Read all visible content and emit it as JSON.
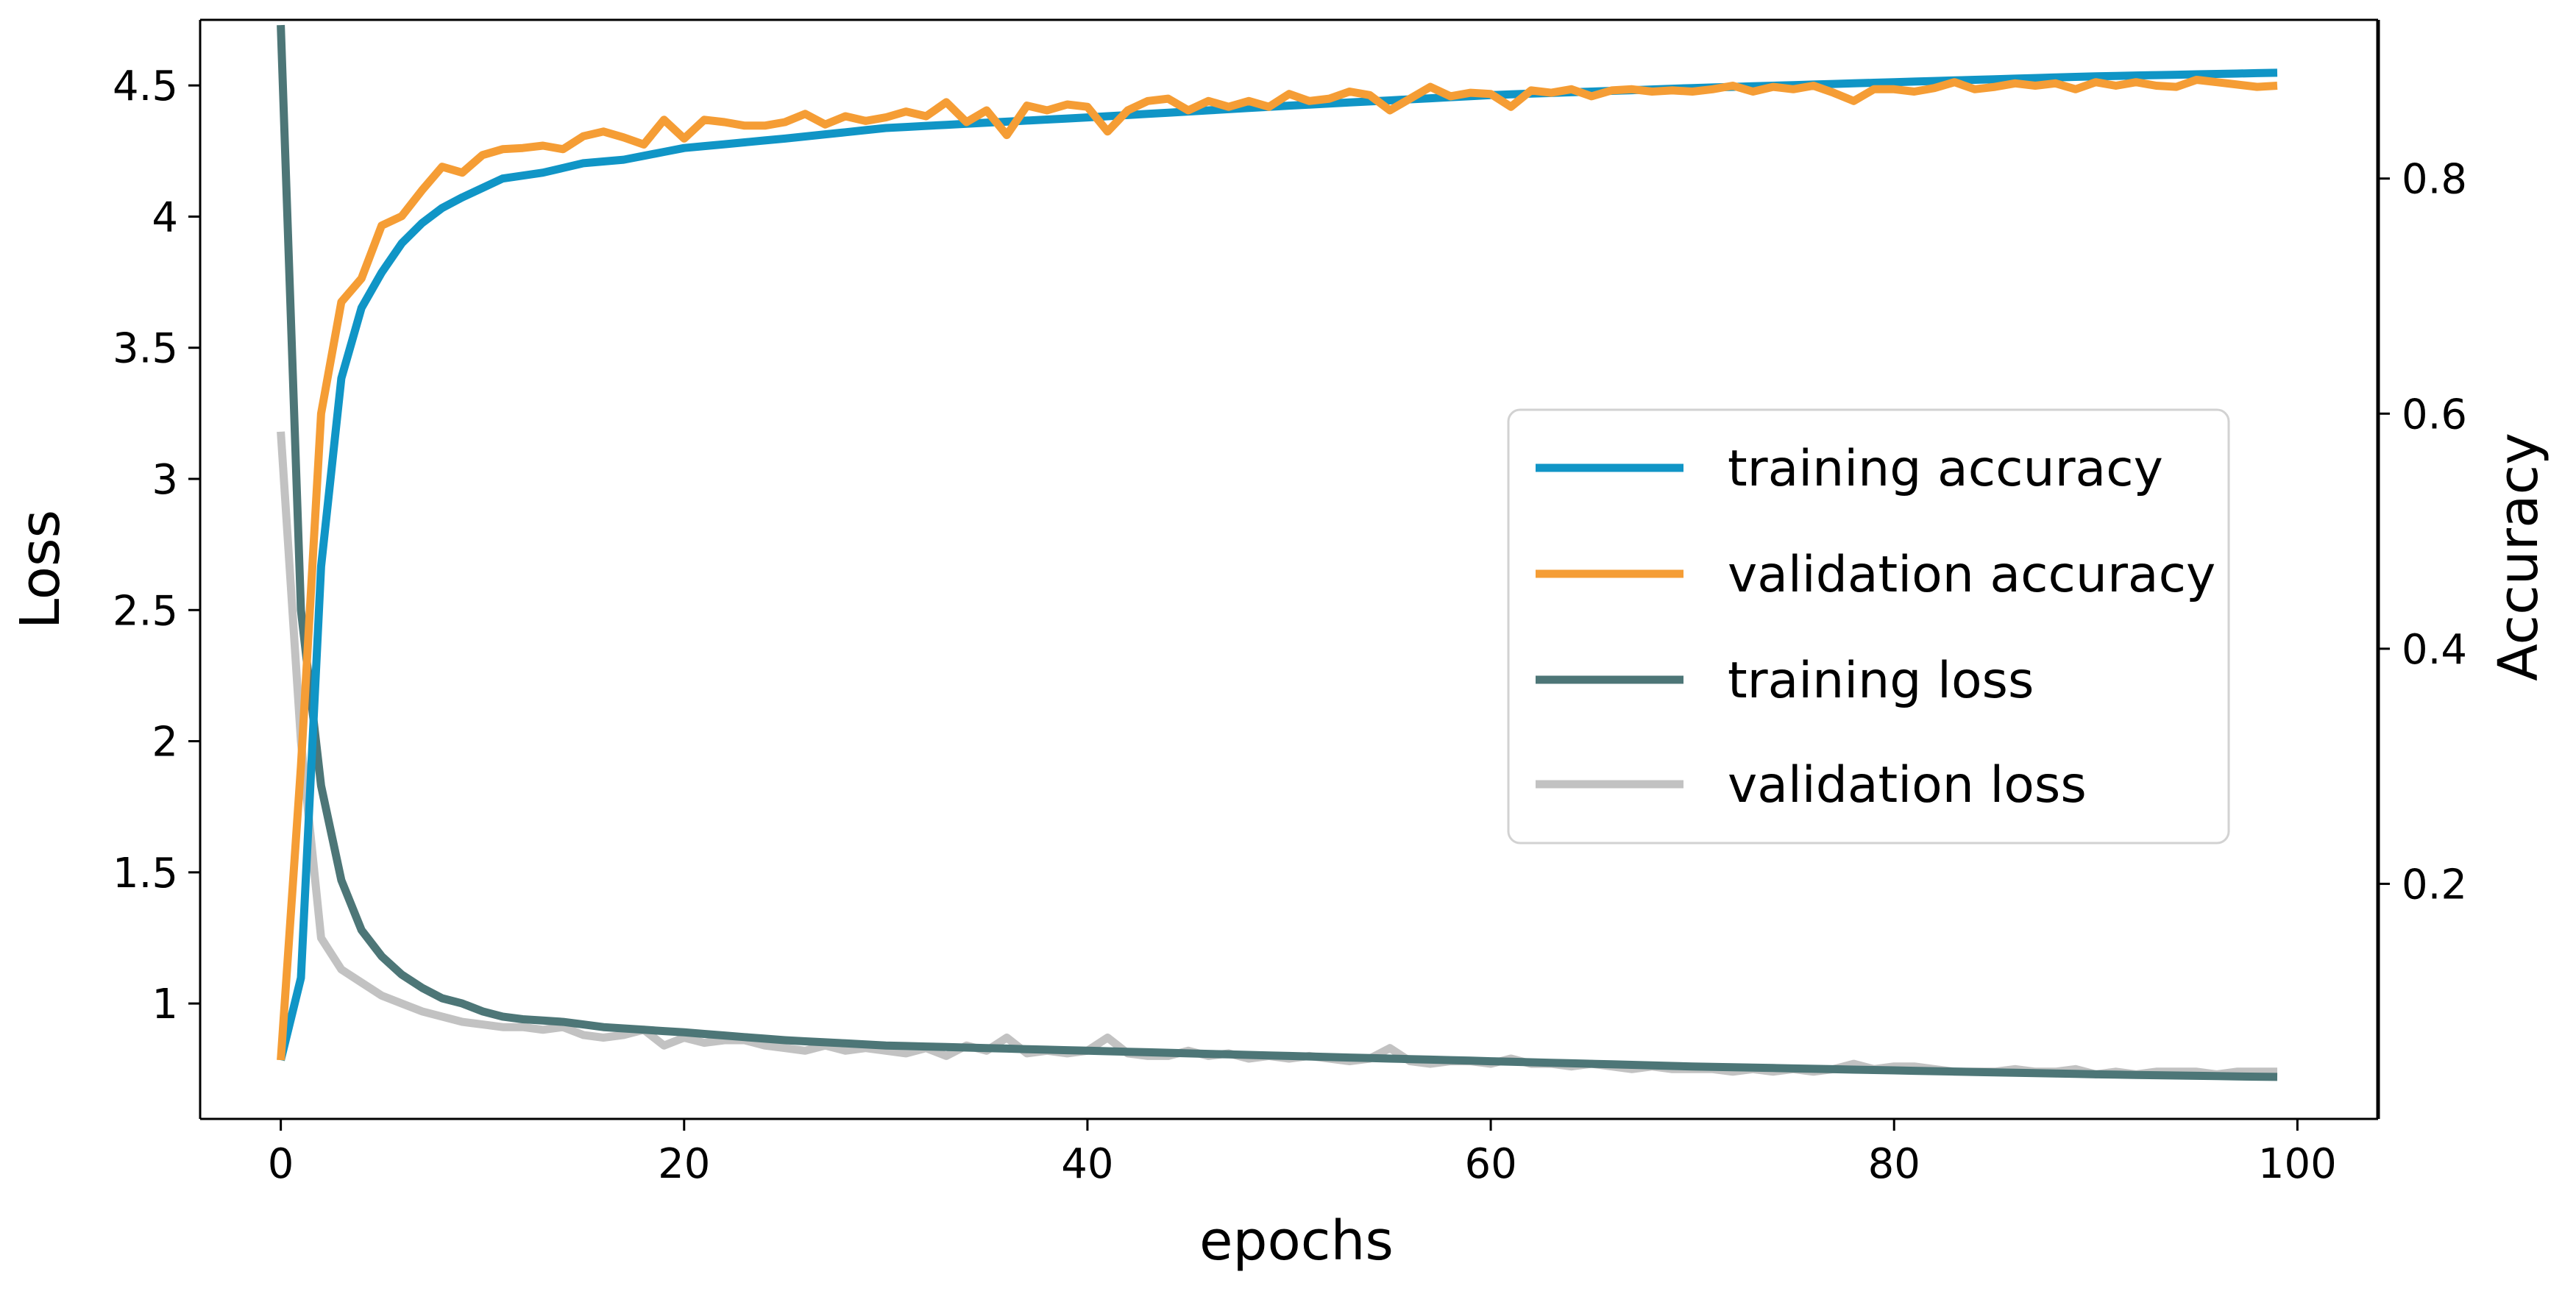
{
  "chart_data": {
    "type": "line",
    "title": "",
    "xlabel": "epochs",
    "ylabel_left": "Loss",
    "ylabel_right": "Accuracy",
    "xlim": [
      -4,
      104
    ],
    "ylim_left": [
      0.56,
      4.75
    ],
    "ylim_right": [
      0.0,
      0.935
    ],
    "xticks": [
      0,
      20,
      40,
      60,
      80,
      100
    ],
    "xtick_labels": [
      "0",
      "20",
      "40",
      "60",
      "80",
      "100"
    ],
    "yticks_left": [
      1,
      1.5,
      2,
      2.5,
      3,
      3.5,
      4,
      4.5
    ],
    "ytick_labels_left": [
      "1",
      "1.5",
      "2",
      "2.5",
      "3",
      "3.5",
      "4",
      "4.5"
    ],
    "yticks_right": [
      0.2,
      0.4,
      0.6,
      0.8
    ],
    "ytick_labels_right": [
      "0.2",
      "0.4",
      "0.6",
      "0.8"
    ],
    "grid": false,
    "legend_position": "center-right",
    "series": [
      {
        "name": "training accuracy",
        "axis": "right",
        "color": "#1095C6",
        "anchors": [
          [
            0,
            0.05
          ],
          [
            1,
            0.12
          ],
          [
            2,
            0.47
          ],
          [
            3,
            0.63
          ],
          [
            4,
            0.69
          ],
          [
            5,
            0.72
          ],
          [
            6,
            0.745
          ],
          [
            7,
            0.762
          ],
          [
            8,
            0.775
          ],
          [
            9,
            0.784
          ],
          [
            10,
            0.792
          ],
          [
            11,
            0.8
          ],
          [
            13,
            0.805
          ],
          [
            15,
            0.813
          ],
          [
            17,
            0.816
          ],
          [
            20,
            0.826
          ],
          [
            25,
            0.834
          ],
          [
            30,
            0.843
          ],
          [
            40,
            0.852
          ],
          [
            50,
            0.862
          ],
          [
            60,
            0.871
          ],
          [
            70,
            0.877
          ],
          [
            80,
            0.882
          ],
          [
            90,
            0.887
          ],
          [
            99,
            0.89
          ]
        ]
      },
      {
        "name": "validation accuracy",
        "axis": "right",
        "color": "#F59D35",
        "anchors": [
          [
            0,
            0.05
          ],
          [
            1,
            0.3
          ],
          [
            2,
            0.6
          ],
          [
            3,
            0.695
          ],
          [
            4,
            0.715
          ],
          [
            5,
            0.76
          ],
          [
            6,
            0.768
          ],
          [
            7,
            0.79
          ],
          [
            8,
            0.81
          ],
          [
            9,
            0.805
          ],
          [
            10,
            0.82
          ],
          [
            11,
            0.825
          ],
          [
            12,
            0.826
          ],
          [
            13,
            0.828
          ],
          [
            14,
            0.825
          ],
          [
            15,
            0.836
          ],
          [
            16,
            0.84
          ],
          [
            17,
            0.835
          ],
          [
            18,
            0.829
          ],
          [
            19,
            0.85
          ],
          [
            20,
            0.834
          ],
          [
            21,
            0.85
          ],
          [
            22,
            0.848
          ],
          [
            23,
            0.845
          ],
          [
            24,
            0.845
          ],
          [
            25,
            0.848
          ],
          [
            26,
            0.855
          ],
          [
            27,
            0.846
          ],
          [
            28,
            0.853
          ],
          [
            29,
            0.849
          ],
          [
            30,
            0.852
          ],
          [
            31,
            0.857
          ],
          [
            32,
            0.853
          ],
          [
            33,
            0.865
          ],
          [
            34,
            0.848
          ],
          [
            35,
            0.858
          ],
          [
            36,
            0.837
          ],
          [
            37,
            0.862
          ],
          [
            38,
            0.858
          ],
          [
            39,
            0.863
          ],
          [
            40,
            0.861
          ],
          [
            41,
            0.84
          ],
          [
            42,
            0.858
          ],
          [
            43,
            0.866
          ],
          [
            44,
            0.868
          ],
          [
            45,
            0.858
          ],
          [
            46,
            0.866
          ],
          [
            47,
            0.861
          ],
          [
            48,
            0.866
          ],
          [
            49,
            0.861
          ],
          [
            50,
            0.872
          ],
          [
            51,
            0.866
          ],
          [
            52,
            0.868
          ],
          [
            53,
            0.874
          ],
          [
            54,
            0.871
          ],
          [
            55,
            0.858
          ],
          [
            56,
            0.868
          ],
          [
            57,
            0.878
          ],
          [
            58,
            0.87
          ],
          [
            59,
            0.873
          ],
          [
            60,
            0.872
          ],
          [
            61,
            0.861
          ],
          [
            62,
            0.875
          ],
          [
            63,
            0.873
          ],
          [
            64,
            0.876
          ],
          [
            65,
            0.87
          ],
          [
            66,
            0.875
          ],
          [
            67,
            0.876
          ],
          [
            68,
            0.874
          ],
          [
            69,
            0.875
          ],
          [
            70,
            0.874
          ],
          [
            71,
            0.876
          ],
          [
            72,
            0.879
          ],
          [
            73,
            0.874
          ],
          [
            74,
            0.878
          ],
          [
            75,
            0.876
          ],
          [
            76,
            0.879
          ],
          [
            77,
            0.873
          ],
          [
            78,
            0.866
          ],
          [
            79,
            0.876
          ],
          [
            80,
            0.876
          ],
          [
            81,
            0.874
          ],
          [
            82,
            0.877
          ],
          [
            83,
            0.882
          ],
          [
            84,
            0.876
          ],
          [
            85,
            0.878
          ],
          [
            86,
            0.881
          ],
          [
            87,
            0.879
          ],
          [
            88,
            0.881
          ],
          [
            89,
            0.876
          ],
          [
            90,
            0.882
          ],
          [
            91,
            0.879
          ],
          [
            92,
            0.882
          ],
          [
            93,
            0.879
          ],
          [
            94,
            0.878
          ],
          [
            95,
            0.884
          ],
          [
            96,
            0.882
          ],
          [
            97,
            0.88
          ],
          [
            98,
            0.878
          ],
          [
            99,
            0.879
          ]
        ]
      },
      {
        "name": "training loss",
        "axis": "left",
        "color": "#4D7677",
        "anchors": [
          [
            0,
            4.73
          ],
          [
            1,
            2.5
          ],
          [
            2,
            1.83
          ],
          [
            3,
            1.47
          ],
          [
            4,
            1.28
          ],
          [
            5,
            1.18
          ],
          [
            6,
            1.11
          ],
          [
            7,
            1.06
          ],
          [
            8,
            1.02
          ],
          [
            9,
            1.0
          ],
          [
            10,
            0.97
          ],
          [
            11,
            0.95
          ],
          [
            12,
            0.94
          ],
          [
            14,
            0.93
          ],
          [
            16,
            0.91
          ],
          [
            20,
            0.89
          ],
          [
            25,
            0.86
          ],
          [
            30,
            0.84
          ],
          [
            40,
            0.82
          ],
          [
            50,
            0.8
          ],
          [
            60,
            0.78
          ],
          [
            70,
            0.76
          ],
          [
            80,
            0.745
          ],
          [
            90,
            0.73
          ],
          [
            99,
            0.72
          ]
        ]
      },
      {
        "name": "validation loss",
        "axis": "left",
        "color": "#C2C2C2",
        "anchors": [
          [
            0,
            3.18
          ],
          [
            1,
            2.0
          ],
          [
            2,
            1.25
          ],
          [
            3,
            1.13
          ],
          [
            4,
            1.08
          ],
          [
            5,
            1.03
          ],
          [
            6,
            1.0
          ],
          [
            7,
            0.97
          ],
          [
            8,
            0.95
          ],
          [
            9,
            0.93
          ],
          [
            10,
            0.92
          ],
          [
            11,
            0.91
          ],
          [
            12,
            0.91
          ],
          [
            13,
            0.9
          ],
          [
            14,
            0.91
          ],
          [
            15,
            0.88
          ],
          [
            16,
            0.87
          ],
          [
            17,
            0.88
          ],
          [
            18,
            0.9
          ],
          [
            19,
            0.84
          ],
          [
            20,
            0.87
          ],
          [
            21,
            0.85
          ],
          [
            22,
            0.86
          ],
          [
            23,
            0.86
          ],
          [
            24,
            0.84
          ],
          [
            25,
            0.83
          ],
          [
            26,
            0.82
          ],
          [
            27,
            0.84
          ],
          [
            28,
            0.82
          ],
          [
            29,
            0.83
          ],
          [
            30,
            0.82
          ],
          [
            31,
            0.81
          ],
          [
            32,
            0.83
          ],
          [
            33,
            0.8
          ],
          [
            34,
            0.84
          ],
          [
            35,
            0.82
          ],
          [
            36,
            0.87
          ],
          [
            37,
            0.81
          ],
          [
            38,
            0.82
          ],
          [
            39,
            0.81
          ],
          [
            40,
            0.82
          ],
          [
            41,
            0.87
          ],
          [
            42,
            0.81
          ],
          [
            43,
            0.8
          ],
          [
            44,
            0.8
          ],
          [
            45,
            0.82
          ],
          [
            46,
            0.8
          ],
          [
            47,
            0.81
          ],
          [
            48,
            0.79
          ],
          [
            49,
            0.8
          ],
          [
            50,
            0.79
          ],
          [
            51,
            0.8
          ],
          [
            52,
            0.79
          ],
          [
            53,
            0.78
          ],
          [
            54,
            0.79
          ],
          [
            55,
            0.83
          ],
          [
            56,
            0.78
          ],
          [
            57,
            0.77
          ],
          [
            58,
            0.78
          ],
          [
            59,
            0.78
          ],
          [
            60,
            0.77
          ],
          [
            61,
            0.79
          ],
          [
            62,
            0.77
          ],
          [
            63,
            0.77
          ],
          [
            64,
            0.76
          ],
          [
            65,
            0.77
          ],
          [
            66,
            0.76
          ],
          [
            67,
            0.75
          ],
          [
            68,
            0.76
          ],
          [
            69,
            0.75
          ],
          [
            70,
            0.75
          ],
          [
            71,
            0.75
          ],
          [
            72,
            0.74
          ],
          [
            73,
            0.75
          ],
          [
            74,
            0.74
          ],
          [
            75,
            0.75
          ],
          [
            76,
            0.74
          ],
          [
            77,
            0.75
          ],
          [
            78,
            0.77
          ],
          [
            79,
            0.75
          ],
          [
            80,
            0.76
          ],
          [
            81,
            0.76
          ],
          [
            82,
            0.75
          ],
          [
            83,
            0.74
          ],
          [
            84,
            0.74
          ],
          [
            85,
            0.74
          ],
          [
            86,
            0.75
          ],
          [
            87,
            0.74
          ],
          [
            88,
            0.74
          ],
          [
            89,
            0.75
          ],
          [
            90,
            0.73
          ],
          [
            91,
            0.74
          ],
          [
            92,
            0.73
          ],
          [
            93,
            0.74
          ],
          [
            94,
            0.74
          ],
          [
            95,
            0.74
          ],
          [
            96,
            0.73
          ],
          [
            97,
            0.74
          ],
          [
            98,
            0.74
          ],
          [
            99,
            0.74
          ]
        ]
      }
    ]
  }
}
